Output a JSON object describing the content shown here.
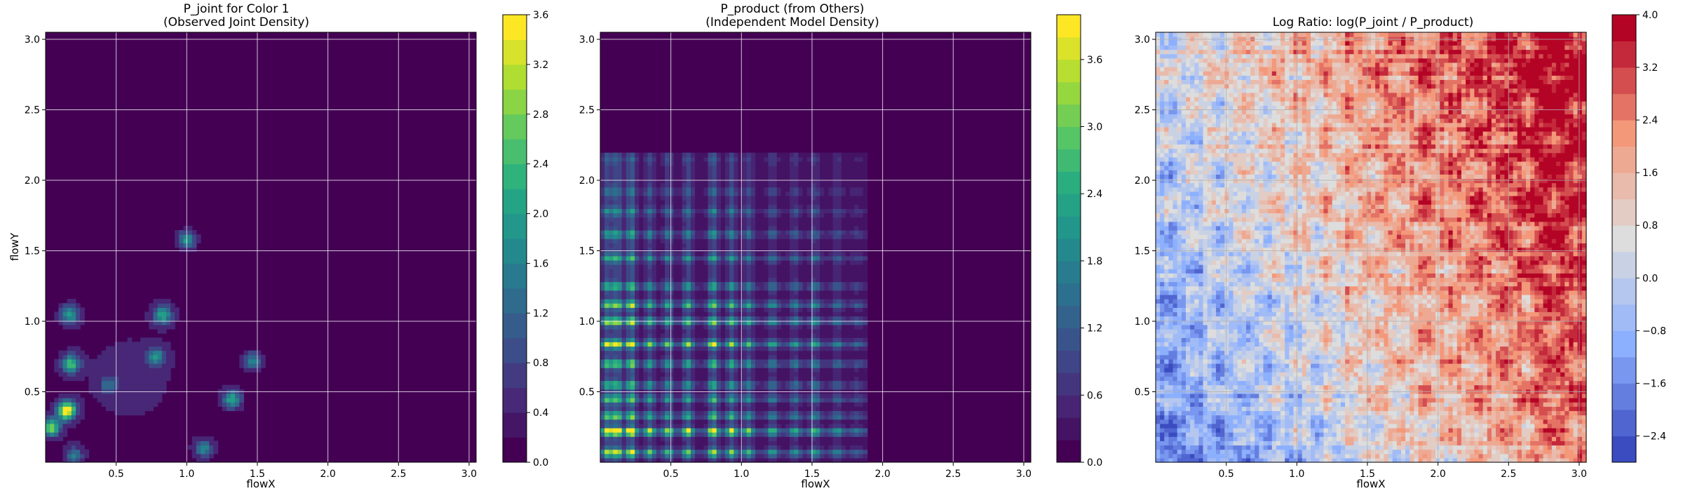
{
  "figure": {
    "panels": [
      {
        "id": "joint",
        "title_line1": "P_joint for Color 1",
        "title_line2": "(Observed Joint Density)",
        "xlabel": "flowX",
        "ylabel": "flowY",
        "cbar_ticks": [
          "0.0",
          "0.4",
          "0.8",
          "1.2",
          "1.6",
          "2.0",
          "2.4",
          "2.8",
          "3.2",
          "3.6"
        ]
      },
      {
        "id": "product",
        "title_line1": "P_product (from Others)",
        "title_line2": "(Independent Model Density)",
        "xlabel": "flowX",
        "ylabel": "",
        "cbar_ticks": [
          "0.0",
          "0.6",
          "1.2",
          "1.8",
          "2.4",
          "3.0",
          "3.6"
        ]
      },
      {
        "id": "logratio",
        "title_line1": "Log Ratio: log(P_joint / P_product)",
        "title_line2": "",
        "xlabel": "flowX",
        "ylabel": "",
        "cbar_ticks": [
          "−2.4",
          "−1.6",
          "−0.8",
          "0.0",
          "0.8",
          "1.6",
          "2.4",
          "3.2",
          "4.0"
        ]
      }
    ],
    "x_ticks": [
      "0.5",
      "1.0",
      "1.5",
      "2.0",
      "2.5",
      "3.0"
    ],
    "y_ticks": [
      "0.5",
      "1.0",
      "1.5",
      "2.0",
      "2.5",
      "3.0"
    ]
  },
  "chart_data": [
    {
      "type": "heatmap",
      "colormap": "viridis",
      "title": "P_joint for Color 1\n(Observed Joint Density)",
      "xlabel": "flowX",
      "ylabel": "flowY",
      "xlim": [
        0.0,
        3.05
      ],
      "ylim": [
        0.0,
        3.05
      ],
      "x_ticks": [
        0.5,
        1.0,
        1.5,
        2.0,
        2.5,
        3.0
      ],
      "y_ticks": [
        0.5,
        1.0,
        1.5,
        2.0,
        2.5,
        3.0
      ],
      "grid": true,
      "colorbar": {
        "range": [
          0.0,
          3.6
        ],
        "ticks": [
          0.0,
          0.4,
          0.8,
          1.2,
          1.6,
          2.0,
          2.4,
          2.8,
          3.2,
          3.6
        ]
      },
      "hotspots": [
        {
          "x": 0.15,
          "y": 0.37,
          "value": 3.5
        },
        {
          "x": 0.04,
          "y": 0.25,
          "value": 2.6
        },
        {
          "x": 0.18,
          "y": 0.7,
          "value": 2.1
        },
        {
          "x": 0.17,
          "y": 1.05,
          "value": 1.8
        },
        {
          "x": 0.83,
          "y": 1.05,
          "value": 1.9
        },
        {
          "x": 0.78,
          "y": 0.75,
          "value": 1.6
        },
        {
          "x": 1.0,
          "y": 1.58,
          "value": 1.8
        },
        {
          "x": 1.32,
          "y": 0.45,
          "value": 2.0
        },
        {
          "x": 1.47,
          "y": 0.72,
          "value": 1.5
        },
        {
          "x": 1.12,
          "y": 0.1,
          "value": 1.5
        },
        {
          "x": 0.45,
          "y": 0.55,
          "value": 1.1
        },
        {
          "x": 0.2,
          "y": 0.05,
          "value": 1.3
        }
      ]
    },
    {
      "type": "heatmap",
      "colormap": "viridis",
      "title": "P_product (from Others)\n(Independent Model Density)",
      "xlabel": "flowX",
      "xlim": [
        0.0,
        3.05
      ],
      "ylim": [
        0.0,
        3.05
      ],
      "x_ticks": [
        0.5,
        1.0,
        1.5,
        2.0,
        2.5,
        3.0
      ],
      "y_ticks": [
        0.5,
        1.0,
        1.5,
        2.0,
        2.5,
        3.0
      ],
      "grid": true,
      "colorbar": {
        "range": [
          0.0,
          4.0
        ],
        "ticks": [
          0.0,
          0.6,
          1.2,
          1.8,
          2.4,
          3.0,
          3.6
        ]
      },
      "peak": {
        "x": 0.22,
        "y": 0.22,
        "value": 3.9
      },
      "marginal_x": [
        [
          0.05,
          0.8
        ],
        [
          0.12,
          0.9
        ],
        [
          0.22,
          1.0
        ],
        [
          0.35,
          0.65
        ],
        [
          0.48,
          0.6
        ],
        [
          0.62,
          0.7
        ],
        [
          0.8,
          0.85
        ],
        [
          0.93,
          0.7
        ],
        [
          1.05,
          0.55
        ],
        [
          1.22,
          0.45
        ],
        [
          1.38,
          0.4
        ],
        [
          1.52,
          0.45
        ],
        [
          1.68,
          0.3
        ],
        [
          1.82,
          0.15
        ]
      ],
      "marginal_y": [
        [
          0.07,
          0.75
        ],
        [
          0.22,
          1.0
        ],
        [
          0.33,
          0.6
        ],
        [
          0.45,
          0.55
        ],
        [
          0.55,
          0.5
        ],
        [
          0.7,
          0.6
        ],
        [
          0.84,
          0.8
        ],
        [
          1.0,
          0.7
        ],
        [
          1.12,
          0.65
        ],
        [
          1.25,
          0.5
        ],
        [
          1.45,
          0.45
        ],
        [
          1.62,
          0.4
        ],
        [
          1.78,
          0.3
        ],
        [
          1.92,
          0.2
        ],
        [
          2.15,
          0.1
        ]
      ]
    },
    {
      "type": "heatmap",
      "colormap": "coolwarm",
      "title": "Log Ratio: log(P_joint / P_product)",
      "xlabel": "flowX",
      "xlim": [
        0.0,
        3.05
      ],
      "ylim": [
        0.0,
        3.05
      ],
      "x_ticks": [
        0.5,
        1.0,
        1.5,
        2.0,
        2.5,
        3.0
      ],
      "y_ticks": [
        0.5,
        1.0,
        1.5,
        2.0,
        2.5,
        3.0
      ],
      "grid": true,
      "colorbar": {
        "range": [
          -2.8,
          4.0
        ],
        "ticks": [
          -2.4,
          -1.6,
          -0.8,
          0.0,
          0.8,
          1.6,
          2.4,
          3.2,
          4.0
        ]
      },
      "trend": "negative (blue) toward low flowX/high flowY and bottom-left, strongly positive (red) toward high flowX and high flowY, peak ~3.5 near (2.9, 2.95)"
    }
  ]
}
